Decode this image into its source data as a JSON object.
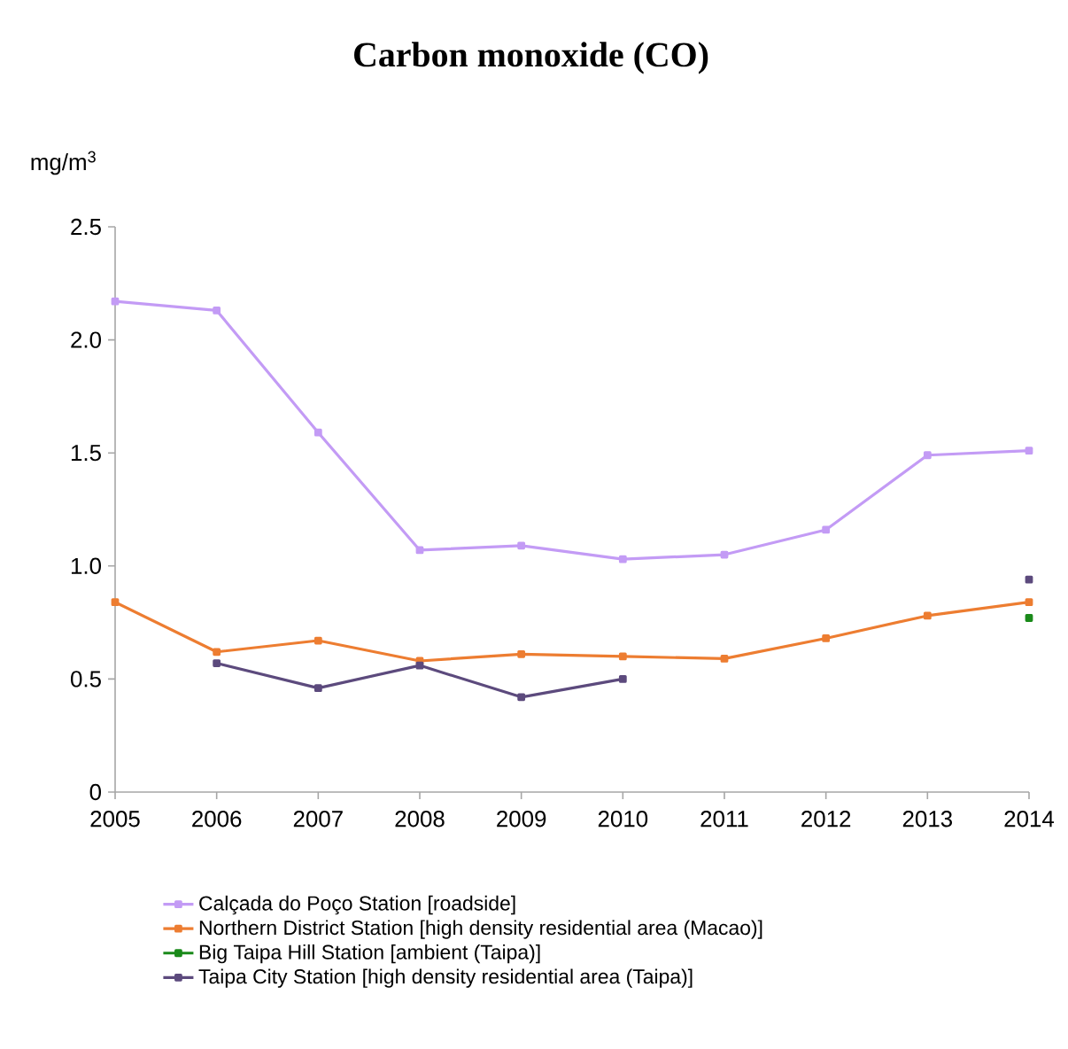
{
  "chart_data": {
    "type": "line",
    "title": "Carbon monoxide (CO)",
    "ylabel": "mg/m$^{3}$",
    "x": [
      2005,
      2006,
      2007,
      2008,
      2009,
      2010,
      2011,
      2012,
      2013,
      2014
    ],
    "series": [
      {
        "name": "Calçada do Poço Station [roadside]",
        "color": "#c39bf5",
        "values": [
          2.17,
          2.13,
          1.59,
          1.07,
          1.09,
          1.03,
          1.05,
          1.16,
          1.49,
          1.51
        ]
      },
      {
        "name": "Northern District Station [high density residential area (Macao)]",
        "color": "#ed7d31",
        "values": [
          0.84,
          0.62,
          0.67,
          0.58,
          0.61,
          0.6,
          0.59,
          0.68,
          0.78,
          0.84
        ]
      },
      {
        "name": "Big Taipa Hill Station [ambient (Taipa)]",
        "color": "#1a8a1a",
        "values": [
          null,
          null,
          null,
          null,
          null,
          null,
          null,
          null,
          null,
          0.77
        ]
      },
      {
        "name": "Taipa City Station [high density residential area (Taipa)]",
        "color": "#5c4a7d",
        "values": [
          null,
          0.57,
          0.46,
          0.56,
          0.42,
          0.5,
          null,
          null,
          null,
          0.94
        ]
      }
    ],
    "xlim": [
      2005,
      2014
    ],
    "xticks": [
      2005,
      2006,
      2007,
      2008,
      2009,
      2010,
      2011,
      2012,
      2013,
      2014
    ],
    "ylim": [
      0,
      2.5
    ],
    "yticks": [
      0,
      0.5,
      {
        "value": 1.0,
        "label": "1.0"
      },
      1.5,
      {
        "value": 2.0,
        "label": "2.0"
      },
      2.5
    ],
    "grid": false,
    "legend": "bottom",
    "marker": "square",
    "line_style": "solid"
  }
}
